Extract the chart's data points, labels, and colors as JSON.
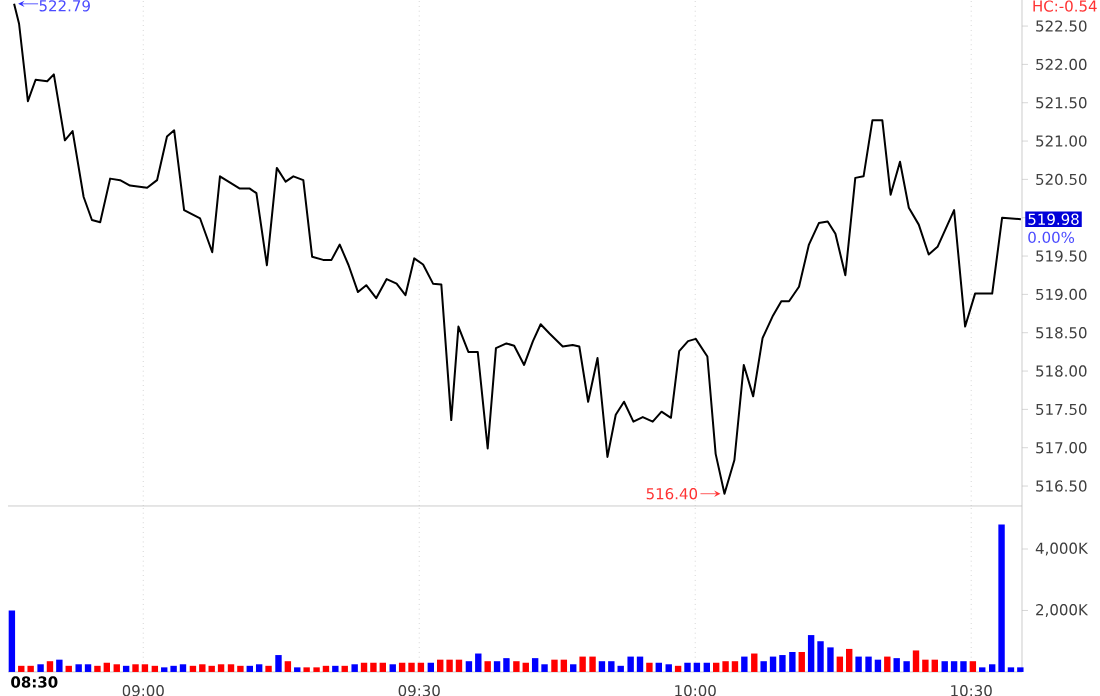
{
  "chart_data": [
    {
      "type": "line",
      "color": "#000000",
      "x": [
        8.766,
        8.775,
        8.791,
        8.805,
        8.826,
        8.838,
        8.858,
        8.872,
        8.892,
        8.907,
        8.922,
        8.94,
        8.958,
        8.976,
        9.007,
        9.025,
        9.043,
        9.056,
        9.074,
        9.103,
        9.125,
        9.139,
        9.175,
        9.193,
        9.205,
        9.224,
        9.242,
        9.258,
        9.272,
        9.29,
        9.306,
        9.326,
        9.341,
        9.356,
        9.372,
        9.389,
        9.404,
        9.422,
        9.441,
        9.459,
        9.475,
        9.491,
        9.507,
        9.525,
        9.54,
        9.558,
        9.571,
        9.589,
        9.606,
        9.624,
        9.639,
        9.658,
        9.672,
        9.69,
        9.706,
        9.72,
        9.736,
        9.76,
        9.778,
        9.79,
        9.806,
        9.823,
        9.841,
        9.856,
        9.871,
        9.888,
        9.905,
        9.923,
        9.939,
        9.956,
        9.971,
        9.987,
        10.001,
        10.022,
        10.037,
        10.053,
        10.071,
        10.088,
        10.105,
        10.122,
        10.14,
        10.156,
        10.17,
        10.188,
        10.206,
        10.224,
        10.24,
        10.254,
        10.272,
        10.29,
        10.305,
        10.321,
        10.339,
        10.354,
        10.371,
        10.387,
        10.405,
        10.423,
        10.439,
        10.469,
        10.489,
        10.507,
        10.538,
        10.556,
        10.59
      ],
      "values": [
        522.79,
        522.53,
        521.52,
        521.8,
        521.78,
        521.87,
        521.01,
        521.13,
        520.27,
        519.97,
        519.94,
        520.51,
        520.49,
        520.42,
        520.39,
        520.49,
        521.06,
        521.14,
        520.1,
        519.99,
        519.55,
        520.54,
        520.38,
        520.38,
        520.32,
        519.38,
        520.65,
        520.47,
        520.54,
        520.49,
        519.49,
        519.45,
        519.45,
        519.65,
        519.38,
        519.03,
        519.12,
        518.95,
        519.2,
        519.14,
        518.99,
        519.47,
        519.39,
        519.14,
        519.13,
        517.36,
        518.58,
        518.25,
        518.25,
        516.99,
        518.3,
        518.36,
        518.33,
        518.08,
        518.39,
        518.61,
        518.49,
        518.32,
        518.34,
        518.32,
        517.6,
        518.17,
        516.88,
        517.43,
        517.6,
        517.34,
        517.4,
        517.34,
        517.47,
        517.39,
        518.26,
        518.39,
        518.42,
        518.19,
        516.92,
        516.4,
        516.84,
        518.08,
        517.67,
        518.43,
        518.71,
        518.91,
        518.91,
        519.1,
        519.65,
        519.93,
        519.95,
        519.79,
        519.25,
        520.52,
        520.54,
        521.27,
        521.27,
        520.3,
        520.73,
        520.13,
        519.91,
        519.52,
        519.62,
        520.1,
        518.58,
        519.01,
        519.01,
        520.0,
        519.98
      ],
      "xlim": [
        8.755,
        10.592
      ],
      "ylim": [
        516.24,
        522.84
      ],
      "xticks": [
        {
          "value": 9,
          "label": null
        },
        {
          "value": 9.5,
          "label": null
        },
        {
          "value": 10,
          "label": null
        },
        {
          "value": 10.5,
          "label": null
        }
      ],
      "yticks": [
        {
          "value": 516.5,
          "label": "516.50"
        },
        {
          "value": 517,
          "label": "517.00"
        },
        {
          "value": 517.5,
          "label": "517.50"
        },
        {
          "value": 518,
          "label": "518.00"
        },
        {
          "value": 518.5,
          "label": "518.50"
        },
        {
          "value": 519,
          "label": "519.00"
        },
        {
          "value": 519.5,
          "label": "519.50"
        },
        {
          "value": 520,
          "label": null
        },
        {
          "value": 520.5,
          "label": "520.50"
        },
        {
          "value": 521,
          "label": "521.00"
        },
        {
          "value": 521.5,
          "label": "521.50"
        },
        {
          "value": 522,
          "label": "522.00"
        },
        {
          "value": 522.5,
          "label": "522.50"
        }
      ],
      "tick_labels": "y",
      "grid": "x",
      "annotations": [
        {
          "text": "522.79",
          "x": 8.766,
          "y": 522.79
        },
        {
          "text": "516.40",
          "x": 10.053,
          "y": 516.4
        },
        {
          "text": "519.98",
          "x": 10.59,
          "y": 519.98
        },
        "0.00%",
        "HC:-0.54"
      ]
    },
    {
      "type": "bar",
      "x": [
        8.762,
        8.779,
        8.796,
        8.814,
        8.831,
        8.848,
        8.865,
        8.883,
        8.9,
        8.917,
        8.934,
        8.952,
        8.969,
        8.986,
        9.003,
        9.021,
        9.038,
        9.055,
        9.072,
        9.09,
        9.107,
        9.124,
        9.141,
        9.159,
        9.176,
        9.193,
        9.21,
        9.227,
        9.245,
        9.262,
        9.279,
        9.296,
        9.314,
        9.331,
        9.348,
        9.365,
        9.383,
        9.4,
        9.417,
        9.434,
        9.452,
        9.469,
        9.486,
        9.503,
        9.521,
        9.538,
        9.555,
        9.572,
        9.59,
        9.607,
        9.624,
        9.641,
        9.658,
        9.676,
        9.693,
        9.71,
        9.727,
        9.745,
        9.762,
        9.779,
        9.796,
        9.814,
        9.831,
        9.848,
        9.865,
        9.883,
        9.9,
        9.917,
        9.934,
        9.952,
        9.969,
        9.986,
        10.003,
        10.021,
        10.038,
        10.055,
        10.072,
        10.089,
        10.107,
        10.124,
        10.141,
        10.158,
        10.176,
        10.193,
        10.21,
        10.227,
        10.245,
        10.262,
        10.279,
        10.296,
        10.314,
        10.331,
        10.348,
        10.365,
        10.383,
        10.4,
        10.417,
        10.434,
        10.452,
        10.469,
        10.486,
        10.503,
        10.52,
        10.538,
        10.555,
        10.572,
        10.589
      ],
      "values": [
        2000,
        200,
        200,
        250,
        350,
        400,
        200,
        250,
        250,
        200,
        300,
        250,
        200,
        250,
        250,
        200,
        150,
        200,
        250,
        200,
        250,
        200,
        250,
        250,
        200,
        200,
        250,
        200,
        550,
        350,
        150,
        150,
        150,
        200,
        200,
        200,
        250,
        300,
        300,
        300,
        250,
        300,
        300,
        300,
        300,
        400,
        400,
        400,
        350,
        600,
        350,
        350,
        450,
        350,
        300,
        450,
        250,
        400,
        400,
        250,
        500,
        500,
        350,
        350,
        200,
        500,
        500,
        300,
        300,
        250,
        200,
        300,
        300,
        300,
        300,
        350,
        350,
        500,
        600,
        350,
        500,
        550,
        650,
        650,
        1200,
        1000,
        800,
        500,
        750,
        500,
        500,
        400,
        500,
        450,
        350,
        700,
        400,
        400,
        350,
        350,
        350,
        350,
        150,
        250,
        4800,
        150,
        150
      ],
      "colors": [
        "#0000ff",
        "#ff0000",
        "#ff0000",
        "#0000ff",
        "#ff0000",
        "#0000ff",
        "#ff0000",
        "#0000ff",
        "#0000ff",
        "#ff0000",
        "#ff0000",
        "#ff0000",
        "#0000ff",
        "#ff0000",
        "#ff0000",
        "#ff0000",
        "#0000ff",
        "#0000ff",
        "#0000ff",
        "#ff0000",
        "#ff0000",
        "#ff0000",
        "#ff0000",
        "#ff0000",
        "#ff0000",
        "#0000ff",
        "#0000ff",
        "#ff0000",
        "#0000ff",
        "#ff0000",
        "#0000ff",
        "#ff0000",
        "#ff0000",
        "#ff0000",
        "#0000ff",
        "#ff0000",
        "#0000ff",
        "#ff0000",
        "#ff0000",
        "#ff0000",
        "#0000ff",
        "#ff0000",
        "#ff0000",
        "#ff0000",
        "#0000ff",
        "#ff0000",
        "#ff0000",
        "#ff0000",
        "#0000ff",
        "#0000ff",
        "#ff0000",
        "#0000ff",
        "#0000ff",
        "#ff0000",
        "#ff0000",
        "#0000ff",
        "#0000ff",
        "#ff0000",
        "#ff0000",
        "#0000ff",
        "#ff0000",
        "#ff0000",
        "#0000ff",
        "#0000ff",
        "#0000ff",
        "#0000ff",
        "#0000ff",
        "#ff0000",
        "#0000ff",
        "#0000ff",
        "#ff0000",
        "#0000ff",
        "#0000ff",
        "#0000ff",
        "#ff0000",
        "#ff0000",
        "#ff0000",
        "#0000ff",
        "#ff0000",
        "#0000ff",
        "#0000ff",
        "#0000ff",
        "#0000ff",
        "#ff0000",
        "#0000ff",
        "#0000ff",
        "#0000ff",
        "#ff0000",
        "#ff0000",
        "#0000ff",
        "#0000ff",
        "#0000ff",
        "#ff0000",
        "#0000ff",
        "#0000ff",
        "#ff0000",
        "#ff0000",
        "#ff0000",
        "#0000ff",
        "#0000ff",
        "#0000ff",
        "#ff0000",
        "#0000ff",
        "#0000ff",
        "#0000ff",
        "#0000ff",
        "#0000ff"
      ],
      "xlim": [
        8.755,
        10.592
      ],
      "ylim": [
        0,
        5400
      ],
      "xticks": [
        {
          "value": 9,
          "label": "09:00"
        },
        {
          "value": 9.5,
          "label": "09:30"
        },
        {
          "value": 10,
          "label": "10:00"
        },
        {
          "value": 10.5,
          "label": "10:30"
        }
      ],
      "yticks": [
        {
          "value": 2000,
          "label": "2,000K"
        },
        {
          "value": 4000,
          "label": "4,000K"
        }
      ],
      "grid": "x",
      "annotations": [
        "08:30"
      ]
    }
  ]
}
